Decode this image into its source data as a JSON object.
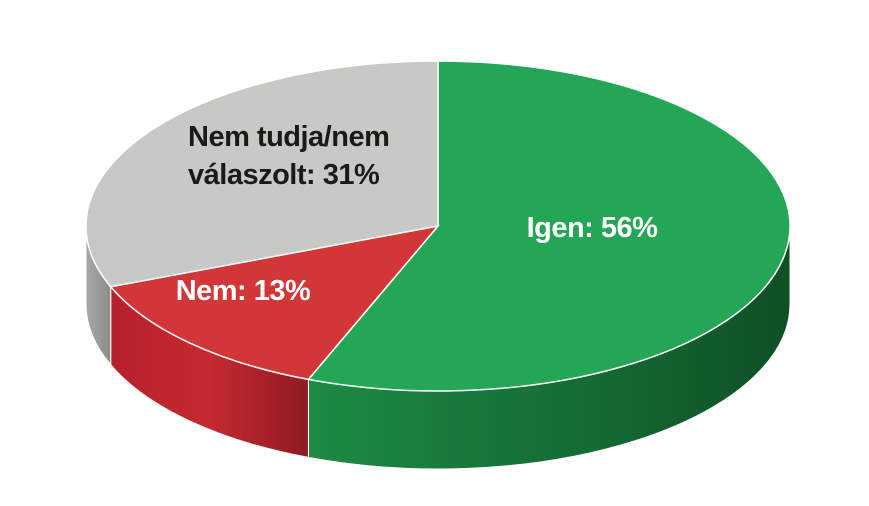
{
  "chart_data": {
    "type": "pie",
    "title": "",
    "labels": [
      "Igen",
      "Nem",
      "Nem tudja/nem válaszolt"
    ],
    "values": [
      56,
      13,
      31
    ],
    "unit": "%",
    "colors": [
      "#23a656",
      "#d33638",
      "#c8c8c4"
    ],
    "side_colors": [
      "#157a3a",
      "#a82028",
      "#9a9a96"
    ],
    "data_labels": [
      {
        "lines": [
          "Igen: 56%"
        ],
        "color": "#ffffff"
      },
      {
        "lines": [
          "Nem: 13%"
        ],
        "color": "#ffffff"
      },
      {
        "lines": [
          "Nem tudja/nem",
          "válaszolt: 31%"
        ],
        "color": "#1a1a1a"
      }
    ]
  }
}
